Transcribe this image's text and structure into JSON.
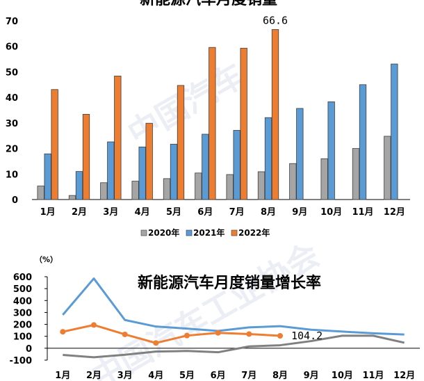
{
  "chart_data": [
    {
      "type": "bar",
      "title": "新能源汽车月度销量",
      "categories": [
        "1月",
        "2月",
        "3月",
        "4月",
        "5月",
        "6月",
        "7月",
        "8月",
        "9月",
        "10月",
        "11月",
        "12月"
      ],
      "ylim": [
        0,
        70
      ],
      "yticks": [
        0,
        10,
        20,
        30,
        40,
        50,
        60,
        70
      ],
      "legend_position": "bottom",
      "series": [
        {
          "name": "2020年",
          "color": "#a5a5a5",
          "values": [
            5.3,
            1.6,
            6.6,
            7.2,
            8.2,
            10.4,
            9.8,
            10.9,
            14.1,
            16.0,
            20.0,
            24.8
          ]
        },
        {
          "name": "2021年",
          "color": "#5b9bd5",
          "values": [
            17.9,
            11.0,
            22.6,
            20.6,
            21.7,
            25.6,
            27.1,
            32.1,
            35.7,
            38.3,
            45.0,
            53.1
          ]
        },
        {
          "name": "2022年",
          "color": "#ed7d31",
          "values": [
            43.1,
            33.4,
            48.4,
            29.9,
            44.7,
            59.6,
            59.3,
            66.6,
            null,
            null,
            null,
            null
          ]
        }
      ],
      "annotations": [
        {
          "series": "2022年",
          "category": "8月",
          "text": "66.6"
        }
      ]
    },
    {
      "type": "line",
      "title": "新能源汽车月度销量增长率",
      "ylabel": "（%）",
      "categories": [
        "1月",
        "2月",
        "3月",
        "4月",
        "5月",
        "6月",
        "7月",
        "8月",
        "9月",
        "10月",
        "11月",
        "12月"
      ],
      "ylim": [
        -100,
        600
      ],
      "yticks": [
        -100,
        0,
        100,
        200,
        300,
        400,
        500,
        600
      ],
      "series": [
        {
          "color": "#808080",
          "values": [
            -56,
            -76,
            -55,
            -28,
            -23,
            -34,
            15,
            25,
            60,
            105,
            105,
            46
          ]
        },
        {
          "color": "#5b9bd5",
          "values": [
            280,
            585,
            237,
            182,
            165,
            145,
            175,
            185,
            155,
            140,
            125,
            115
          ]
        },
        {
          "color": "#ed7d31",
          "values": [
            138,
            195,
            116,
            44,
            106,
            129,
            119,
            104.2,
            null,
            null,
            null,
            null
          ]
        }
      ],
      "annotations": [
        {
          "series_index": 2,
          "category": "8月",
          "text": "104.2"
        }
      ]
    }
  ]
}
